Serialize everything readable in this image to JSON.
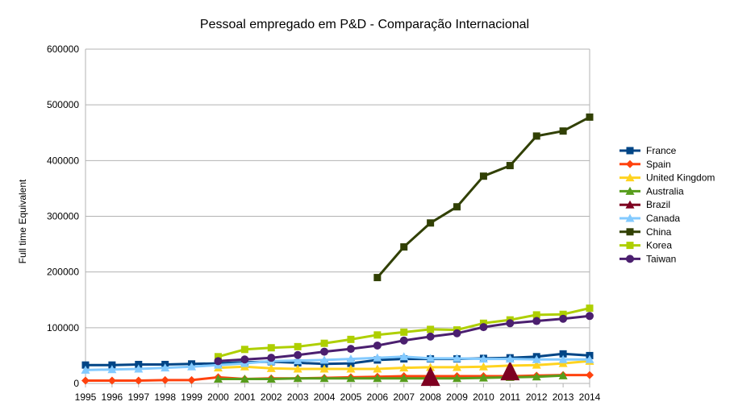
{
  "chart_data": {
    "type": "line",
    "title": "Pessoal empregado em P&D - Comparação Internacional",
    "ylabel": "Full time Equivalent",
    "xlabel": "",
    "ylim": [
      0,
      600000
    ],
    "yticks": [
      0,
      100000,
      200000,
      300000,
      400000,
      500000,
      600000
    ],
    "grid": "horizontal",
    "legend_position": "right",
    "x": [
      "1995",
      "1996",
      "1997",
      "1998",
      "1999",
      "2000",
      "2001",
      "2002",
      "2003",
      "2004",
      "2005",
      "2006",
      "2007",
      "2008",
      "2009",
      "2010",
      "2011",
      "2012",
      "2013",
      "2014"
    ],
    "series": [
      {
        "name": "France",
        "color": "#004586",
        "marker": "square",
        "values": [
          33000,
          33000,
          34000,
          34000,
          35000,
          36000,
          38000,
          39000,
          37000,
          35000,
          36000,
          42000,
          44000,
          44000,
          44000,
          45000,
          46000,
          48000,
          53000,
          50000
        ]
      },
      {
        "name": "Spain",
        "color": "#ff420e",
        "marker": "diamond",
        "values": [
          5000,
          5000,
          5000,
          6000,
          6000,
          11000,
          8000,
          9000,
          9000,
          10000,
          11000,
          12000,
          13000,
          13000,
          13000,
          13000,
          13000,
          14000,
          15000,
          15000
        ]
      },
      {
        "name": "United Kingdom",
        "color": "#ffd320",
        "marker": "triangle",
        "values": [
          null,
          null,
          null,
          null,
          null,
          28000,
          30000,
          27000,
          26000,
          26000,
          26000,
          26000,
          28000,
          29000,
          29000,
          30000,
          32000,
          33000,
          36000,
          40000
        ]
      },
      {
        "name": "Australia",
        "color": "#579d1c",
        "marker": "triangle",
        "values": [
          null,
          null,
          null,
          null,
          null,
          8000,
          8000,
          8000,
          9000,
          9000,
          9000,
          9000,
          9000,
          9000,
          9000,
          10000,
          11000,
          12000,
          14000,
          null
        ]
      },
      {
        "name": "Brazil",
        "color": "#7e0021",
        "marker": "triangle-large",
        "values": [
          null,
          null,
          null,
          null,
          null,
          null,
          null,
          null,
          null,
          null,
          null,
          null,
          null,
          10000,
          null,
          null,
          20000,
          null,
          null,
          null
        ]
      },
      {
        "name": "Canada",
        "color": "#83caff",
        "marker": "triangle",
        "values": [
          24000,
          25000,
          26000,
          28000,
          30000,
          33000,
          36000,
          40000,
          41000,
          42000,
          44000,
          46000,
          48000,
          45000,
          45000,
          44000,
          44000,
          43000,
          43000,
          43000
        ]
      },
      {
        "name": "China",
        "color": "#314004",
        "marker": "square",
        "values": [
          null,
          null,
          null,
          null,
          null,
          null,
          null,
          null,
          null,
          null,
          null,
          190000,
          245000,
          288000,
          317000,
          372000,
          391000,
          444000,
          453000,
          478000
        ]
      },
      {
        "name": "Korea",
        "color": "#aecf00",
        "marker": "square",
        "values": [
          null,
          null,
          null,
          null,
          null,
          48000,
          61000,
          64000,
          66000,
          72000,
          79000,
          87000,
          92000,
          97000,
          96000,
          108000,
          114000,
          123000,
          124000,
          135000
        ]
      },
      {
        "name": "Taiwan",
        "color": "#4b1f6f",
        "marker": "circle",
        "values": [
          null,
          null,
          null,
          null,
          null,
          40000,
          43000,
          46000,
          51000,
          57000,
          62000,
          68000,
          77000,
          84000,
          90000,
          101000,
          108000,
          112000,
          116000,
          121000
        ]
      }
    ]
  }
}
